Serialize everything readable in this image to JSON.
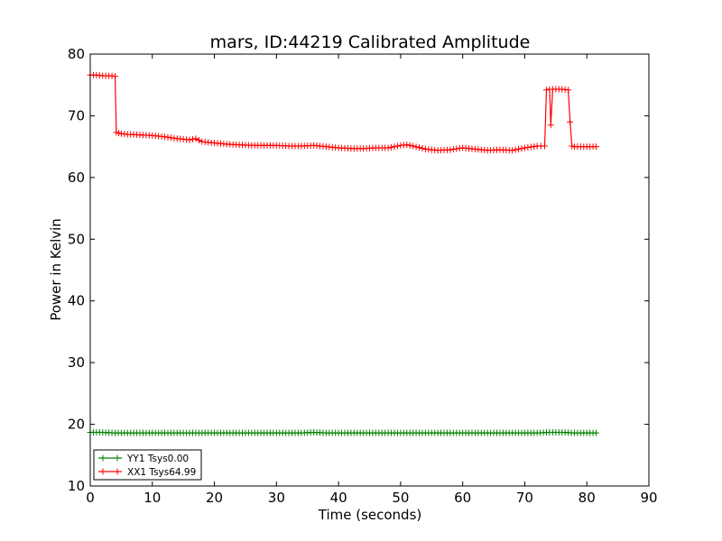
{
  "chart_data": {
    "type": "line",
    "title": "mars, ID:44219 Calibrated Amplitude",
    "xlabel": "Time (seconds)",
    "ylabel": "Power in Kelvin",
    "xlim": [
      0,
      90
    ],
    "ylim": [
      10,
      80
    ],
    "xticks": [
      0,
      10,
      20,
      30,
      40,
      50,
      60,
      70,
      80,
      90
    ],
    "yticks": [
      10,
      20,
      30,
      40,
      50,
      60,
      70,
      80
    ],
    "grid": false,
    "legend_position": "lower-left",
    "series": [
      {
        "name": "YY1 Tsys0.00",
        "color": "#008000",
        "marker": "plus",
        "x": [
          0,
          2,
          4,
          6,
          8,
          10,
          12,
          14,
          16,
          18,
          20,
          22,
          24,
          26,
          28,
          30,
          32,
          34,
          36,
          38,
          40,
          42,
          44,
          46,
          48,
          50,
          52,
          54,
          56,
          58,
          60,
          62,
          64,
          66,
          68,
          70,
          72,
          74,
          76,
          78,
          80,
          81.5
        ],
        "y": [
          18.7,
          18.7,
          18.6,
          18.6,
          18.6,
          18.6,
          18.6,
          18.6,
          18.6,
          18.6,
          18.6,
          18.6,
          18.6,
          18.6,
          18.6,
          18.6,
          18.6,
          18.6,
          18.7,
          18.6,
          18.6,
          18.6,
          18.6,
          18.6,
          18.6,
          18.6,
          18.6,
          18.6,
          18.6,
          18.6,
          18.6,
          18.6,
          18.6,
          18.6,
          18.6,
          18.6,
          18.6,
          18.7,
          18.7,
          18.6,
          18.6,
          18.6
        ]
      },
      {
        "name": "XX1 Tsys64.99",
        "color": "#ff0000",
        "marker": "plus",
        "x": [
          0,
          1,
          2,
          3,
          4,
          4.2,
          5,
          6,
          8,
          10,
          12,
          14,
          16,
          17,
          18,
          20,
          22,
          24,
          26,
          28,
          30,
          32,
          34,
          36,
          38,
          40,
          42,
          44,
          46,
          48,
          50,
          51,
          52,
          54,
          56,
          58,
          60,
          62,
          64,
          66,
          68,
          70,
          72,
          73.2,
          73.5,
          74,
          74.2,
          74.5,
          76,
          77,
          77.3,
          77.6,
          78,
          80,
          81.5
        ],
        "y": [
          76.6,
          76.6,
          76.5,
          76.5,
          76.4,
          67.3,
          67.1,
          67.0,
          66.9,
          66.8,
          66.6,
          66.3,
          66.1,
          66.3,
          65.8,
          65.6,
          65.4,
          65.3,
          65.2,
          65.2,
          65.2,
          65.1,
          65.1,
          65.2,
          65.0,
          64.8,
          64.7,
          64.7,
          64.8,
          64.8,
          65.2,
          65.3,
          65.1,
          64.6,
          64.4,
          64.5,
          64.8,
          64.6,
          64.4,
          64.5,
          64.4,
          64.8,
          65.1,
          65.1,
          74.2,
          74.3,
          68.5,
          74.3,
          74.3,
          74.2,
          69.0,
          65.1,
          65.0,
          65.0,
          65.0
        ]
      }
    ]
  }
}
